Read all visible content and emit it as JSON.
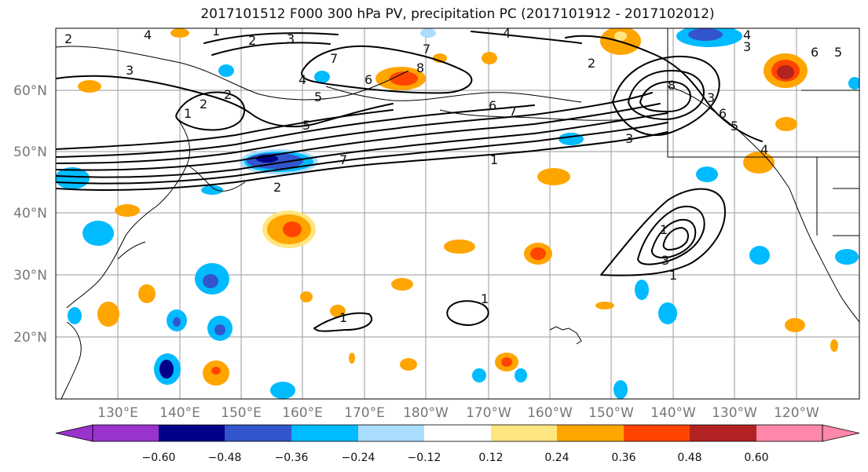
{
  "title": "2017101512 F000 300 hPa PV, precipitation PC (2017101912 - 2017102012)",
  "latitude_labels": [
    "60°N",
    "50°N",
    "40°N",
    "30°N",
    "20°N"
  ],
  "longitude_labels": [
    "130°E",
    "140°E",
    "150°E",
    "160°E",
    "170°E",
    "180°W",
    "170°W",
    "160°W",
    "150°W",
    "140°W",
    "130°W",
    "120°W"
  ],
  "colorbar": {
    "ticks": [
      "−0.60",
      "−0.48",
      "−0.36",
      "−0.24",
      "−0.12",
      "0.12",
      "0.24",
      "0.36",
      "0.48",
      "0.60"
    ],
    "colors": [
      "#9933cc",
      "#000088",
      "#3355cc",
      "#00bbff",
      "#aaddff",
      "#ffffff",
      "#ffe680",
      "#ffa500",
      "#ff4500",
      "#b22222",
      "#ff88aa"
    ]
  },
  "contour_labels": [
    "2",
    "4",
    "1",
    "2",
    "3",
    "4",
    "2",
    "4",
    "5",
    "3",
    "7",
    "6",
    "8",
    "7",
    "5",
    "2",
    "6",
    "7",
    "3",
    "1",
    "2",
    "8",
    "6",
    "5",
    "3",
    "4",
    "7",
    "3",
    "6",
    "5",
    "4",
    "2",
    "1",
    "1",
    "3",
    "1",
    "1",
    "1"
  ]
}
